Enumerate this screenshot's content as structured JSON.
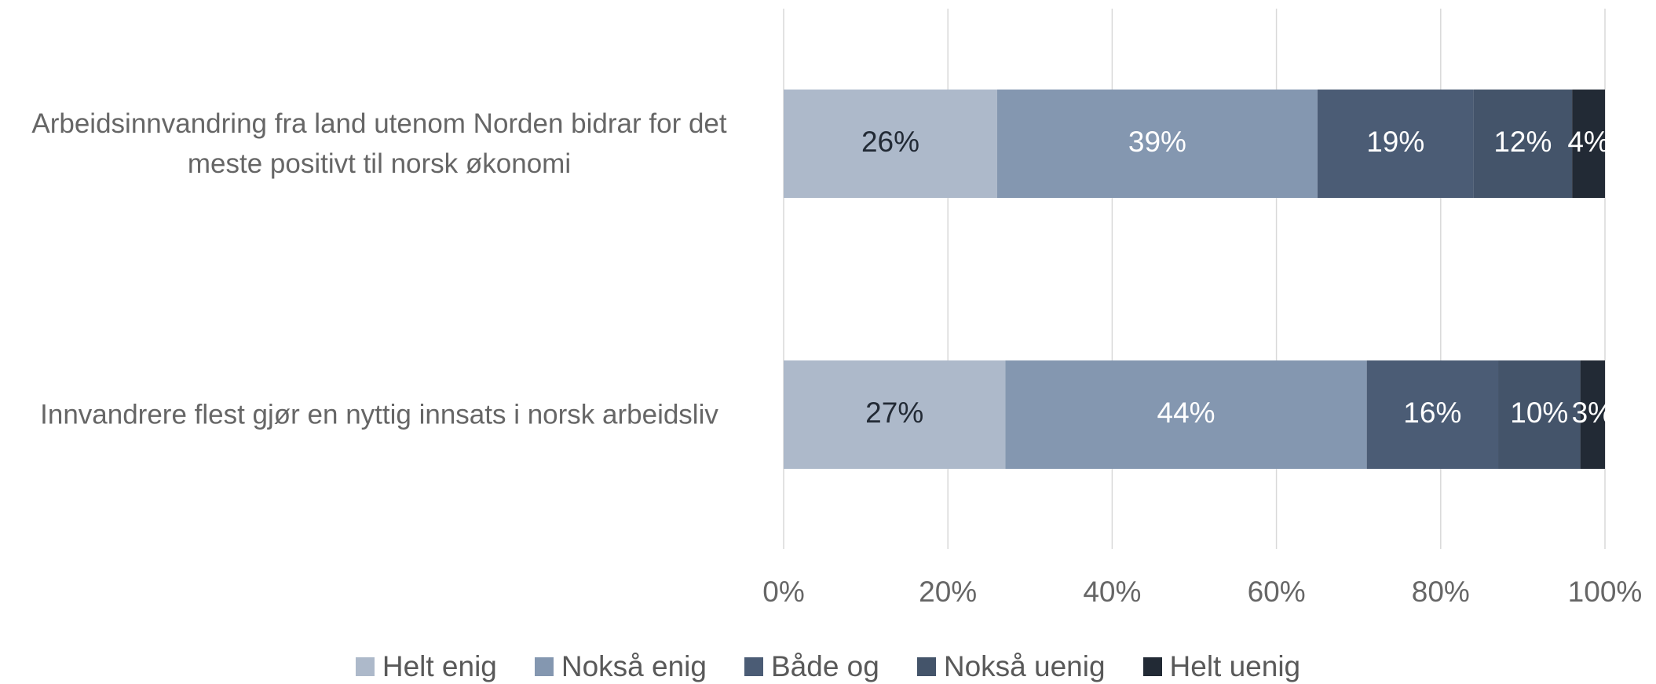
{
  "chart_data": {
    "type": "stacked_barh",
    "categories": [
      "Arbeidsinnvandring fra land utenom Norden bidrar for det meste positivt til norsk økonomi",
      "Innvandrere flest gjør en nyttig innsats i norsk arbeidsliv"
    ],
    "series": [
      {
        "name": "Helt enig",
        "color": "#adb9ca",
        "label_color": "#222a35",
        "values": [
          26,
          27
        ],
        "value_labels": [
          "26%",
          "27%"
        ]
      },
      {
        "name": "Nokså enig",
        "color": "#8497b0",
        "label_color": "#ffffff",
        "values": [
          39,
          44
        ],
        "value_labels": [
          "39%",
          "44%"
        ]
      },
      {
        "name": "Både og",
        "color": "#4b5c75",
        "label_color": "#ffffff",
        "values": [
          19,
          16
        ],
        "value_labels": [
          "19%",
          "16%"
        ]
      },
      {
        "name": "Nokså uenig",
        "color": "#44546a",
        "label_color": "#ffffff",
        "values": [
          12,
          10
        ],
        "value_labels": [
          "12%",
          "10%"
        ]
      },
      {
        "name": "Helt uenig",
        "color": "#222a35",
        "label_color": "#ffffff",
        "values": [
          4,
          3
        ],
        "value_labels": [
          "4%",
          "3%"
        ]
      }
    ],
    "xlim": [
      0,
      100
    ],
    "xticks": [
      {
        "value": 0,
        "label": "0%"
      },
      {
        "value": 20,
        "label": "20%"
      },
      {
        "value": 40,
        "label": "40%"
      },
      {
        "value": 60,
        "label": "60%"
      },
      {
        "value": 80,
        "label": "80%"
      },
      {
        "value": 100,
        "label": "100%"
      }
    ],
    "grid": true,
    "legend": "bottom"
  }
}
